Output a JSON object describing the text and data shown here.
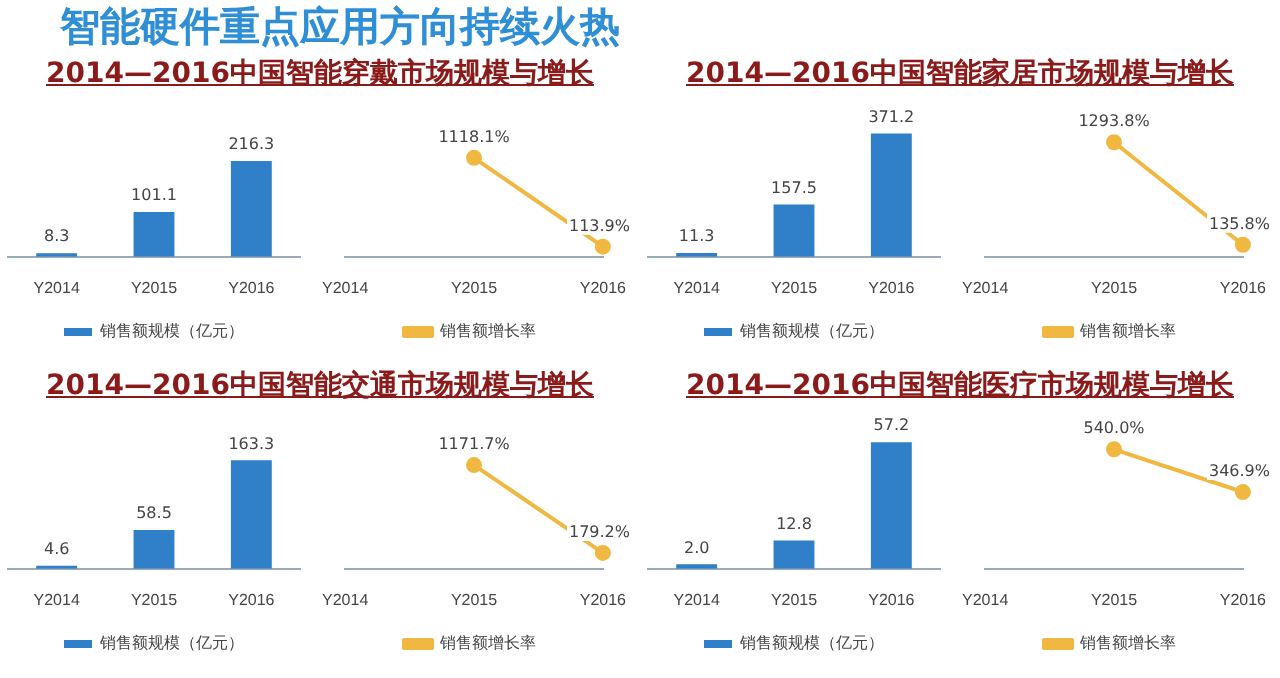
{
  "chart_data": [
    {
      "type": "other",
      "title": "智能硬件重点应用方向持续火热"
    },
    {
      "type": "bar",
      "title": "2014—2016中国智能穿戴市场规模与增长",
      "categories": [
        "Y2014",
        "Y2015",
        "Y2016"
      ],
      "series": [
        {
          "name": "销售额规模（亿元）",
          "color": "#2f7fc9",
          "values": [
            8.3,
            101.1,
            216.3
          ]
        }
      ],
      "data_labels": true,
      "legend": "bottom"
    },
    {
      "type": "line",
      "categories": [
        "Y2014",
        "Y2015",
        "Y2016"
      ],
      "series": [
        {
          "name": "销售额增长率",
          "color": "#f0b840",
          "values": [
            null,
            1118.1,
            113.9
          ],
          "value_labels": [
            null,
            "1118.1%",
            "113.9%"
          ]
        }
      ],
      "legend": "bottom",
      "marker": "circle"
    },
    {
      "type": "bar",
      "title": "2014—2016中国智能家居市场规模与增长",
      "categories": [
        "Y2014",
        "Y2015",
        "Y2016"
      ],
      "series": [
        {
          "name": "销售额规模（亿元）",
          "color": "#2f7fc9",
          "values": [
            11.3,
            157.5,
            371.2
          ]
        }
      ],
      "data_labels": true,
      "legend": "bottom"
    },
    {
      "type": "line",
      "categories": [
        "Y2014",
        "Y2015",
        "Y2016"
      ],
      "series": [
        {
          "name": "销售额增长率",
          "color": "#f0b840",
          "values": [
            null,
            1293.8,
            135.8
          ],
          "value_labels": [
            null,
            "1293.8%",
            "135.8%"
          ]
        }
      ],
      "legend": "bottom",
      "marker": "circle"
    },
    {
      "type": "bar",
      "title": "2014—2016中国智能交通市场规模与增长",
      "categories": [
        "Y2014",
        "Y2015",
        "Y2016"
      ],
      "series": [
        {
          "name": "销售额规模（亿元）",
          "color": "#2f7fc9",
          "values": [
            4.6,
            58.5,
            163.3
          ]
        }
      ],
      "data_labels": true,
      "legend": "bottom"
    },
    {
      "type": "line",
      "categories": [
        "Y2014",
        "Y2015",
        "Y2016"
      ],
      "series": [
        {
          "name": "销售额增长率",
          "color": "#f0b840",
          "values": [
            null,
            1171.7,
            179.2
          ],
          "value_labels": [
            null,
            "1171.7%",
            "179.2%"
          ]
        }
      ],
      "legend": "bottom",
      "marker": "circle"
    },
    {
      "type": "bar",
      "title": "2014—2016中国智能医疗市场规模与增长",
      "categories": [
        "Y2014",
        "Y2015",
        "Y2016"
      ],
      "series": [
        {
          "name": "销售额规模（亿元）",
          "color": "#2f7fc9",
          "values": [
            2.0,
            12.8,
            57.2
          ],
          "value_labels": [
            "2.0",
            "12.8",
            "57.2"
          ]
        }
      ],
      "legend": "bottom"
    },
    {
      "type": "line",
      "categories": [
        "Y2014",
        "Y2015",
        "Y2016"
      ],
      "series": [
        {
          "name": "销售额增长率",
          "color": "#f0b840",
          "values": [
            null,
            540.0,
            346.9
          ],
          "value_labels": [
            null,
            "540.0%",
            "346.9%"
          ]
        }
      ],
      "legend": "bottom",
      "marker": "circle"
    }
  ]
}
